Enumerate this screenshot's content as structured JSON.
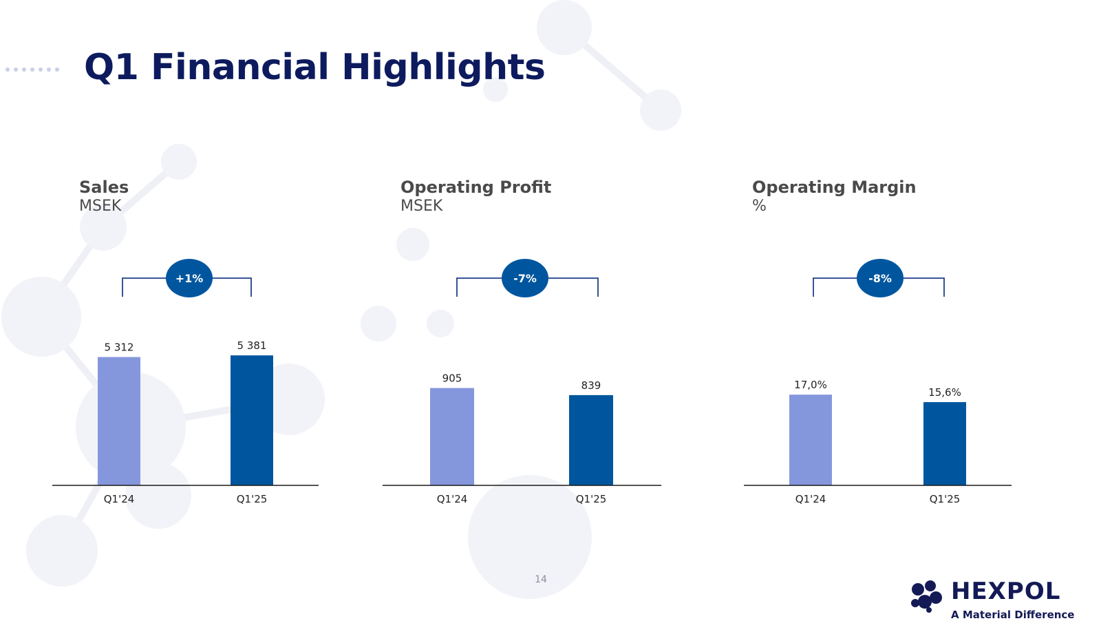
{
  "slide": {
    "title": "Q1 Financial Highlights",
    "page_number": "14"
  },
  "logo": {
    "name": "HEXPOL",
    "tagline": "A Material Difference"
  },
  "colors": {
    "title": "#0d1b5e",
    "q1_24_bar": "#8597dc",
    "q1_25_bar": "#00569e",
    "badge": "#00569e",
    "bracket": "#1f3f8a"
  },
  "panels": [
    {
      "heading": "Sales",
      "unit": "MSEK"
    },
    {
      "heading": "Operating Profit",
      "unit": "MSEK"
    },
    {
      "heading": "Operating Margin",
      "unit": "%"
    }
  ],
  "chart_data": [
    {
      "type": "bar",
      "title": "Sales",
      "ylabel": "MSEK",
      "categories": [
        "Q1'24",
        "Q1'25"
      ],
      "values": [
        5312,
        5381
      ],
      "data_labels": [
        "5 312",
        "5 381"
      ],
      "change_label": "+1%",
      "ylim": [
        0,
        5700
      ]
    },
    {
      "type": "bar",
      "title": "Operating Profit",
      "ylabel": "MSEK",
      "categories": [
        "Q1'24",
        "Q1'25"
      ],
      "values": [
        905,
        839
      ],
      "data_labels": [
        "905",
        "839"
      ],
      "change_label": "-7%",
      "ylim": [
        0,
        1280
      ]
    },
    {
      "type": "bar",
      "title": "Operating Margin",
      "ylabel": "%",
      "categories": [
        "Q1'24",
        "Q1'25"
      ],
      "values": [
        17.0,
        15.6
      ],
      "data_labels": [
        "17,0%",
        "15,6%"
      ],
      "change_label": "-8%",
      "ylim": [
        0,
        25.8
      ]
    }
  ]
}
